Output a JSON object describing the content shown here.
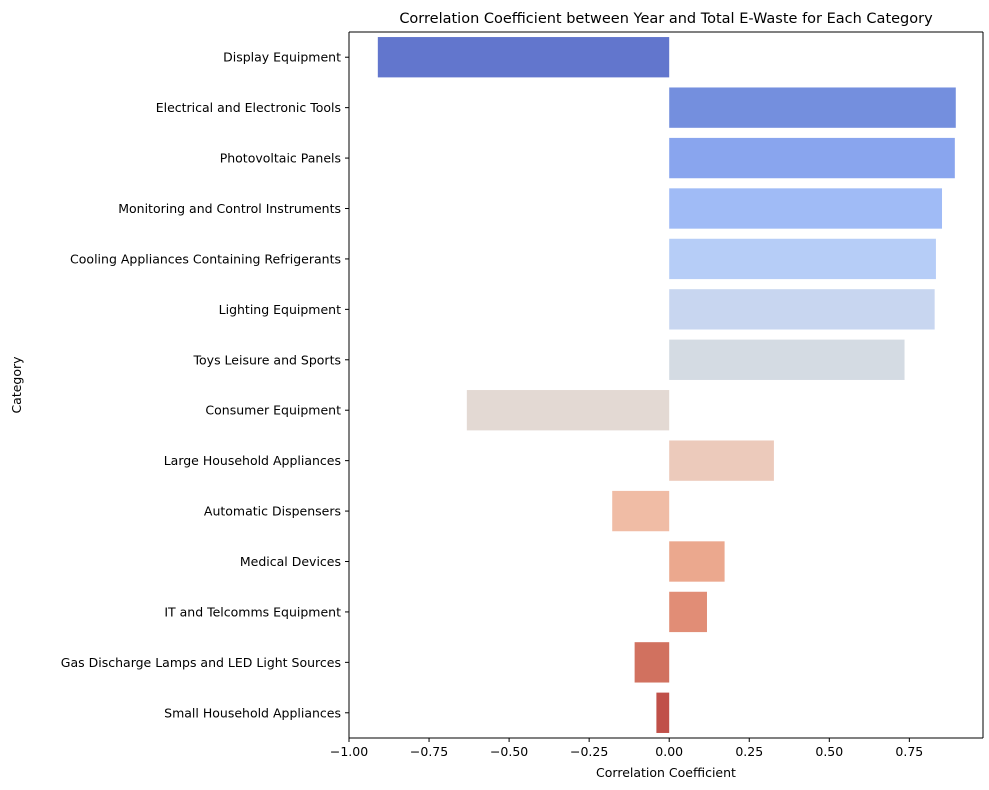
{
  "chart_data": {
    "type": "bar",
    "orientation": "horizontal",
    "title": "Correlation Coefficient between Year and Total E-Waste for Each Category",
    "xlabel": "Correlation Coefficient",
    "ylabel": "Category",
    "xlim": [
      -1.0,
      0.98
    ],
    "xticks": [
      -1.0,
      -0.75,
      -0.5,
      -0.25,
      0.0,
      0.25,
      0.5,
      0.75
    ],
    "xtick_labels": [
      "−1.00",
      "−0.75",
      "−0.50",
      "−0.25",
      "0.00",
      "0.25",
      "0.50",
      "0.75"
    ],
    "grid": false,
    "legend": "none",
    "palette": "coolwarm",
    "categories": [
      "Display Equipment",
      "Electrical and Electronic Tools",
      "Photovoltaic Panels",
      "Monitoring and Control Instruments",
      "Cooling Appliances Containing Refrigerants",
      "Lighting Equipment",
      "Toys Leisure and Sports",
      "Consumer Equipment",
      "Large Household Appliances",
      "Automatic Dispensers",
      "Medical Devices",
      "IT and Telcomms Equipment",
      "Gas Discharge Lamps and LED Light Sources",
      "Small Household Appliances"
    ],
    "values": [
      -0.91,
      0.895,
      0.892,
      0.852,
      0.833,
      0.829,
      0.735,
      -0.632,
      0.327,
      -0.178,
      0.173,
      0.118,
      -0.108,
      -0.04
    ],
    "colors": [
      "#6276cd",
      "#748fde",
      "#89a5ee",
      "#a0bbf6",
      "#b6cdf7",
      "#c8d6f0",
      "#d4dbe3",
      "#e3d9d3",
      "#eccabb",
      "#f0bca5",
      "#eba88e",
      "#e18d76",
      "#d1715f",
      "#c05049"
    ]
  }
}
